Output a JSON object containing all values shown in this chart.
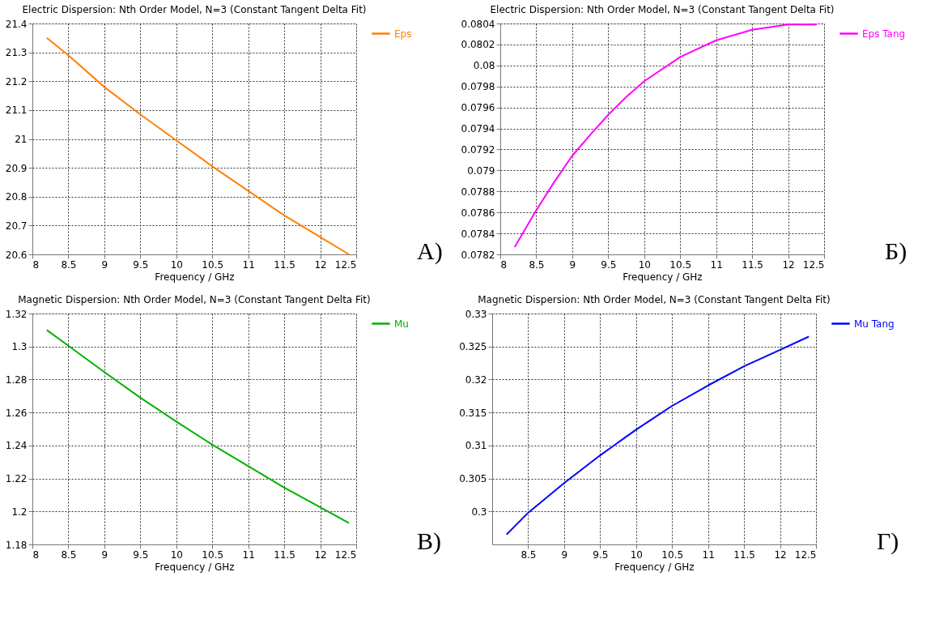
{
  "chart_data": [
    {
      "type": "line",
      "title": "Electric Dispersion: Nth Order Model, N=3 (Constant Tangent Delta Fit)",
      "xlabel": "Frequency / GHz",
      "x": [
        8.2,
        8.5,
        9,
        9.5,
        10,
        10.5,
        11,
        11.5,
        12,
        12.4
      ],
      "series": [
        {
          "name": "Eps",
          "color": "#ff8000",
          "values": [
            21.35,
            21.29,
            21.18,
            21.085,
            20.995,
            20.905,
            20.82,
            20.735,
            20.66,
            20.6
          ]
        }
      ],
      "xlim": [
        8,
        12.5
      ],
      "xticks": [
        8,
        8.5,
        9,
        9.5,
        10,
        10.5,
        11,
        11.5,
        12,
        12.5
      ],
      "ylim": [
        20.6,
        21.4
      ],
      "yticks": [
        20.6,
        20.7,
        20.8,
        20.9,
        21,
        21.1,
        21.2,
        21.3,
        21.4
      ],
      "grid": true,
      "legend": "top right",
      "line_style": "solid",
      "annotations": [
        "А)"
      ]
    },
    {
      "type": "line",
      "title": "Electric Dispersion: Nth Order Model, N=3 (Constant Tangent Delta Fit)",
      "xlabel": "Frequency / GHz",
      "x": [
        8.2,
        8.5,
        8.75,
        9,
        9.25,
        9.5,
        9.75,
        10,
        10.5,
        11,
        11.5,
        12,
        12.4
      ],
      "series": [
        {
          "name": "Eps Tang",
          "color": "#ff00ff",
          "values": [
            0.07827,
            0.07862,
            0.07889,
            0.07914,
            0.07934,
            0.07953,
            0.0797,
            0.07985,
            0.08008,
            0.08024,
            0.08034,
            0.08039,
            0.08039
          ]
        }
      ],
      "xlim": [
        8,
        12.5
      ],
      "xticks": [
        8,
        8.5,
        9,
        9.5,
        10,
        10.5,
        11,
        11.5,
        12,
        12.5
      ],
      "ylim": [
        0.0782,
        0.0804
      ],
      "yticks": [
        0.0782,
        0.0784,
        0.0786,
        0.0788,
        0.079,
        0.0792,
        0.0794,
        0.0796,
        0.0798,
        0.08,
        0.0802,
        0.0804
      ],
      "grid": true,
      "legend": "top right",
      "line_style": "solid",
      "annotations": [
        "Б)"
      ]
    },
    {
      "type": "line",
      "title": "Magnetic Dispersion: Nth Order Model, N=3 (Constant Tangent Delta Fit)",
      "xlabel": "Frequency / GHz",
      "x": [
        8.2,
        8.5,
        9,
        9.5,
        10,
        10.5,
        11,
        11.5,
        12,
        12.4
      ],
      "series": [
        {
          "name": "Mu",
          "color": "#00b000",
          "values": [
            1.31,
            1.3005,
            1.2845,
            1.269,
            1.2545,
            1.2405,
            1.2275,
            1.2145,
            1.2025,
            1.193
          ]
        }
      ],
      "xlim": [
        8,
        12.5
      ],
      "xticks": [
        8,
        8.5,
        9,
        9.5,
        10,
        10.5,
        11,
        11.5,
        12,
        12.5
      ],
      "ylim": [
        1.18,
        1.32
      ],
      "yticks": [
        1.18,
        1.2,
        1.22,
        1.24,
        1.26,
        1.28,
        1.3,
        1.32
      ],
      "grid": true,
      "legend": "top right",
      "line_style": "solid",
      "annotations": [
        "В)"
      ]
    },
    {
      "type": "line",
      "title": "Magnetic Dispersion: Nth Order Model, N=3 (Constant Tangent Delta Fit)",
      "xlabel": "Frequency / GHz",
      "x": [
        8.2,
        8.5,
        9,
        9.5,
        10,
        10.5,
        11,
        11.5,
        12,
        12.4
      ],
      "series": [
        {
          "name": "Mu Tang",
          "color": "#0000ff",
          "values": [
            0.2965,
            0.2998,
            0.3043,
            0.3085,
            0.3124,
            0.316,
            0.3191,
            0.322,
            0.3245,
            0.3265
          ]
        }
      ],
      "xlim": [
        8,
        12.5
      ],
      "xticks": [
        8.5,
        9,
        9.5,
        10,
        10.5,
        11,
        11.5,
        12,
        12.5
      ],
      "ylim": [
        0.295,
        0.33
      ],
      "yticks": [
        0.3,
        0.305,
        0.31,
        0.315,
        0.32,
        0.325,
        0.33
      ],
      "grid": true,
      "legend": "top right",
      "line_style": "solid",
      "annotations": [
        "Г)"
      ]
    }
  ]
}
